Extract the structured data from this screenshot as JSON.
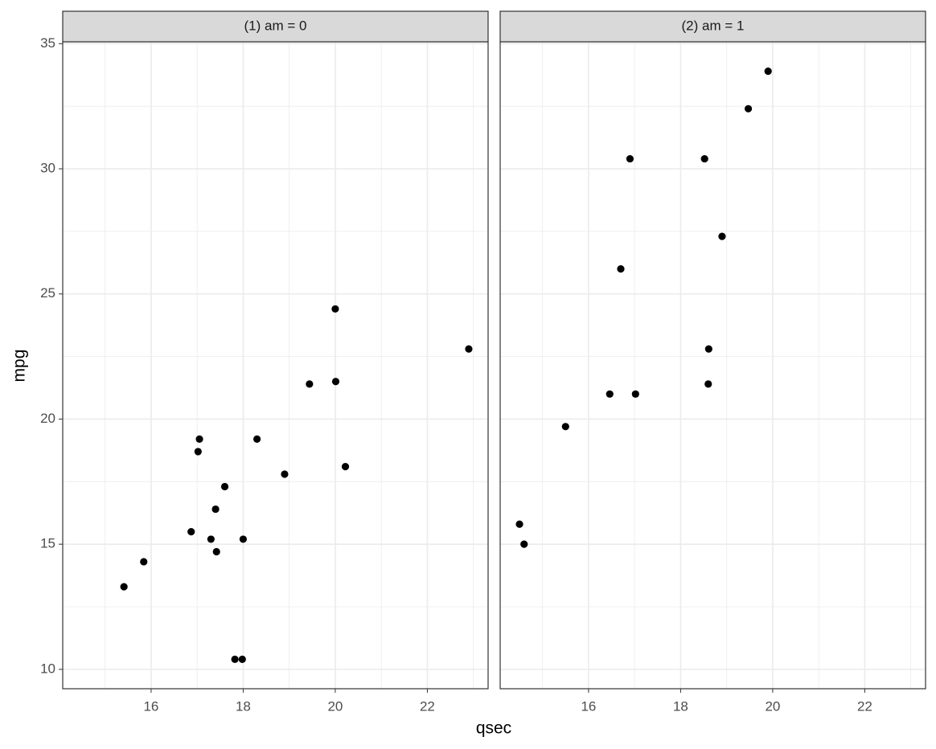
{
  "chart_data": {
    "type": "scatter",
    "x_label": "qsec",
    "y_label": "mpg",
    "color": "#000000",
    "grid": true,
    "xlim": [
      14.08,
      23.32
    ],
    "ylim": [
      9.225,
      35.075
    ],
    "xticks": [
      16,
      18,
      20,
      22
    ],
    "yticks": [
      10,
      15,
      20,
      25,
      30,
      35
    ],
    "panels": [
      {
        "title": "(1) am = 0",
        "x": [
          19.44,
          17.02,
          20.22,
          15.84,
          20.0,
          22.9,
          18.3,
          18.9,
          17.4,
          17.6,
          18.0,
          17.98,
          17.82,
          17.42,
          20.01,
          16.87,
          17.3,
          15.41,
          17.05
        ],
        "y": [
          21.4,
          18.7,
          18.1,
          14.3,
          24.4,
          22.8,
          19.2,
          17.8,
          16.4,
          17.3,
          15.2,
          10.4,
          10.4,
          14.7,
          21.5,
          15.5,
          15.2,
          13.3,
          19.2
        ]
      },
      {
        "title": "(2) am = 1",
        "x": [
          16.46,
          17.02,
          18.61,
          19.47,
          18.52,
          19.9,
          18.9,
          16.7,
          16.9,
          14.5,
          15.5,
          14.6,
          18.6
        ],
        "y": [
          21.0,
          21.0,
          22.8,
          32.4,
          30.4,
          33.9,
          27.3,
          26.0,
          30.4,
          15.8,
          19.7,
          15.0,
          21.4
        ]
      }
    ]
  }
}
